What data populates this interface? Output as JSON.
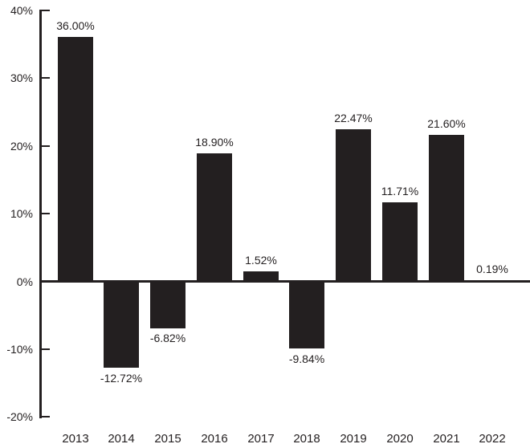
{
  "chart_data": {
    "type": "bar",
    "title": "",
    "xlabel": "",
    "ylabel": "",
    "categories": [
      "2013",
      "2014",
      "2015",
      "2016",
      "2017",
      "2018",
      "2019",
      "2020",
      "2021",
      "2022"
    ],
    "values": [
      36.0,
      -12.72,
      -6.82,
      18.9,
      1.52,
      -9.84,
      22.47,
      11.71,
      21.6,
      0.19
    ],
    "value_labels": [
      "36.00%",
      "-12.72%",
      "-6.82%",
      "18.90%",
      "1.52%",
      "-9.84%",
      "22.47%",
      "11.71%",
      "21.60%",
      "0.19%"
    ],
    "y_ticks": [
      {
        "value": 40,
        "label": "40%"
      },
      {
        "value": 30,
        "label": "30%"
      },
      {
        "value": 20,
        "label": "20%"
      },
      {
        "value": 10,
        "label": "10%"
      },
      {
        "value": 0,
        "label": "0%"
      },
      {
        "value": -10,
        "label": "-10%"
      },
      {
        "value": -20,
        "label": "-20%"
      }
    ],
    "ylim": [
      -20,
      40
    ],
    "grid": false,
    "legend": "none",
    "bar_color": "#231f20",
    "text_color": "#231f20",
    "background_color": "#ffffff"
  }
}
